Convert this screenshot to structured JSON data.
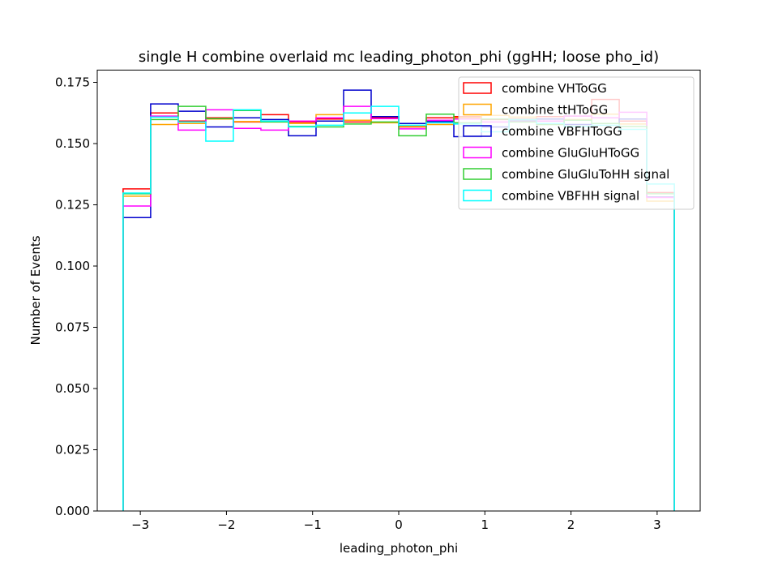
{
  "chart_data": {
    "type": "histogram-step",
    "title": "single H combine overlaid mc leading_photon_phi (ggHH; loose pho_id)",
    "xlabel": "leading_photon_phi",
    "ylabel": "Number of Events",
    "xlim": [
      -3.5,
      3.5
    ],
    "ylim": [
      0,
      0.18
    ],
    "xticks": [
      -3,
      -2,
      -1,
      0,
      1,
      2,
      3
    ],
    "xtick_labels": [
      "−3",
      "−2",
      "−1",
      "0",
      "1",
      "2",
      "3"
    ],
    "yticks": [
      0.0,
      0.025,
      0.05,
      0.075,
      0.1,
      0.125,
      0.15,
      0.175
    ],
    "ytick_labels": [
      "0.000",
      "0.025",
      "0.050",
      "0.075",
      "0.100",
      "0.125",
      "0.150",
      "0.175"
    ],
    "grid": false,
    "legend_position": "top-right",
    "bin_edges": [
      -3.2,
      -2.88,
      -2.56,
      -2.24,
      -1.92,
      -1.6,
      -1.28,
      -0.96,
      -0.64,
      -0.32,
      0.0,
      0.32,
      0.64,
      0.96,
      1.28,
      1.6,
      1.92,
      2.24,
      2.56,
      2.88,
      3.2
    ],
    "series": [
      {
        "name": "combine VHToGG",
        "color": "#ff0000",
        "values": [
          0.1315,
          0.1625,
          0.1592,
          0.1605,
          0.1588,
          0.1618,
          0.1588,
          0.16,
          0.1588,
          0.1605,
          0.1568,
          0.1605,
          0.161,
          0.1598,
          0.16,
          0.161,
          0.1612,
          0.168,
          0.1592,
          0.13
        ]
      },
      {
        "name": "combine ttHToGG",
        "color": "#ffa500",
        "values": [
          0.1285,
          0.1578,
          0.1582,
          0.16,
          0.159,
          0.159,
          0.1582,
          0.1618,
          0.1595,
          0.1585,
          0.157,
          0.1578,
          0.1605,
          0.1615,
          0.1608,
          0.16,
          0.1598,
          0.162,
          0.158,
          0.1265
        ]
      },
      {
        "name": "combine VBFHToGG",
        "color": "#0000cd",
        "values": [
          0.1198,
          0.1662,
          0.1632,
          0.1568,
          0.1605,
          0.1598,
          0.1532,
          0.1592,
          0.1718,
          0.161,
          0.1582,
          0.159,
          0.1528,
          0.1568,
          0.1592,
          0.16,
          0.1578,
          0.1582,
          0.16,
          0.1282
        ]
      },
      {
        "name": "combine GluGluHToGG",
        "color": "#ff00ff",
        "values": [
          0.1245,
          0.1612,
          0.1555,
          0.1638,
          0.1562,
          0.1555,
          0.1592,
          0.1605,
          0.1652,
          0.1602,
          0.156,
          0.1595,
          0.16,
          0.1588,
          0.159,
          0.1592,
          0.1612,
          0.1605,
          0.1628,
          0.128
        ]
      },
      {
        "name": "combine GluGluToHH signal",
        "color": "#32cd32",
        "values": [
          0.1295,
          0.1598,
          0.1652,
          0.1602,
          0.1635,
          0.1588,
          0.157,
          0.1568,
          0.158,
          0.1588,
          0.1532,
          0.162,
          0.1585,
          0.16,
          0.1588,
          0.1578,
          0.1595,
          0.1582,
          0.157,
          0.1295
        ]
      },
      {
        "name": "combine VBFHH signal",
        "color": "#00ffff",
        "values": [
          0.1298,
          0.1608,
          0.1588,
          0.151,
          0.1638,
          0.1592,
          0.1568,
          0.1575,
          0.1625,
          0.1652,
          0.1575,
          0.1585,
          0.158,
          0.1548,
          0.1598,
          0.1582,
          0.157,
          0.1575,
          0.1558,
          0.1335
        ]
      }
    ]
  }
}
